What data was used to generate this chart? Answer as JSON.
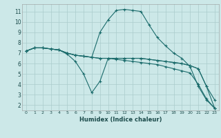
{
  "xlabel": "Humidex (Indice chaleur)",
  "background_color": "#cce8e8",
  "grid_color": "#aacccc",
  "line_color": "#1a6b6b",
  "xlim": [
    -0.5,
    23.5
  ],
  "ylim": [
    1.5,
    11.7
  ],
  "xtick_labels": [
    "0",
    "1",
    "2",
    "3",
    "4",
    "5",
    "6",
    "7",
    "8",
    "9",
    "10",
    "11",
    "12",
    "13",
    "14",
    "15",
    "16",
    "17",
    "18",
    "19",
    "20",
    "21",
    "22",
    "23"
  ],
  "ytick_labels": [
    "2",
    "3",
    "4",
    "5",
    "6",
    "7",
    "8",
    "9",
    "10",
    "11"
  ],
  "ytick_vals": [
    2,
    3,
    4,
    5,
    6,
    7,
    8,
    9,
    10,
    11
  ],
  "series": [
    [
      7.2,
      7.5,
      7.5,
      7.4,
      7.3,
      6.9,
      6.2,
      5.0,
      3.2,
      4.3,
      6.5,
      6.5,
      6.5,
      6.5,
      6.5,
      6.4,
      6.3,
      6.2,
      6.1,
      6.0,
      5.8,
      5.5,
      3.8,
      2.5
    ],
    [
      7.2,
      7.5,
      7.5,
      7.4,
      7.3,
      7.0,
      6.8,
      6.7,
      6.6,
      9.0,
      10.2,
      11.1,
      11.2,
      11.1,
      11.0,
      9.7,
      8.5,
      7.7,
      7.0,
      6.5,
      5.7,
      3.8,
      2.5,
      1.7
    ],
    [
      7.2,
      7.5,
      7.5,
      7.4,
      7.3,
      7.0,
      6.8,
      6.7,
      6.6,
      6.5,
      6.5,
      6.5,
      6.5,
      6.5,
      6.5,
      6.4,
      6.3,
      6.2,
      6.1,
      6.0,
      5.8,
      5.5,
      3.8,
      1.7
    ],
    [
      7.2,
      7.5,
      7.5,
      7.4,
      7.3,
      7.0,
      6.8,
      6.7,
      6.6,
      6.5,
      6.5,
      6.4,
      6.3,
      6.2,
      6.1,
      6.0,
      5.9,
      5.7,
      5.5,
      5.3,
      5.1,
      4.0,
      2.6,
      1.7
    ]
  ]
}
